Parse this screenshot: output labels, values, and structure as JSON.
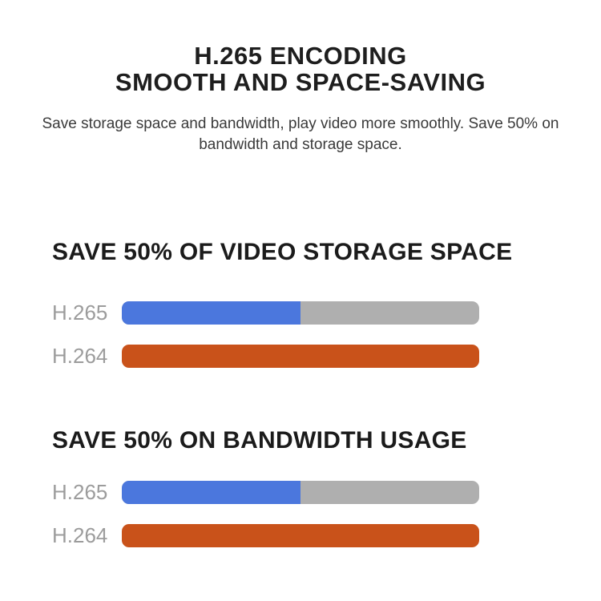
{
  "page": {
    "background_color": "#ffffff",
    "title_line1": "H.265 ENCODING",
    "title_line2": "SMOOTH AND SPACE-SAVING",
    "subtitle_line1": "Save storage space and bandwidth, play video more smoothly. Save 50% on",
    "subtitle_line2": "bandwidth and storage space."
  },
  "colors": {
    "title_text": "#1e1e1e",
    "subtitle_text": "#3a3a3a",
    "section_heading_text": "#1b1b1b",
    "bar_label_text": "#9c9c9c",
    "h265_fill": "#4b77dd",
    "h265_track": "#afafaf",
    "h264_fill": "#c9521a"
  },
  "sections": [
    {
      "heading": "SAVE 50% OF VIDEO STORAGE SPACE",
      "rows": [
        {
          "label": "H.265",
          "value_pct": 50,
          "fill_color": "#4b77dd",
          "track_color": "#afafaf"
        },
        {
          "label": "H.264",
          "value_pct": 100,
          "fill_color": "#c9521a",
          "track_color": "#c9521a"
        }
      ]
    },
    {
      "heading": "SAVE 50% ON BANDWIDTH USAGE",
      "rows": [
        {
          "label": "H.265",
          "value_pct": 50,
          "fill_color": "#4b77dd",
          "track_color": "#afafaf"
        },
        {
          "label": "H.264",
          "value_pct": 100,
          "fill_color": "#c9521a",
          "track_color": "#c9521a"
        }
      ]
    }
  ],
  "chart_data": [
    {
      "type": "bar",
      "orientation": "horizontal",
      "title": "SAVE 50% OF VIDEO STORAGE SPACE",
      "categories": [
        "H.265",
        "H.264"
      ],
      "values": [
        50,
        100
      ],
      "xlim": [
        0,
        100
      ],
      "unit": "%",
      "bar_colors": [
        "#4b77dd",
        "#c9521a"
      ],
      "track_color": "#afafaf",
      "grid": false,
      "legend": false
    },
    {
      "type": "bar",
      "orientation": "horizontal",
      "title": "SAVE 50% ON BANDWIDTH USAGE",
      "categories": [
        "H.265",
        "H.264"
      ],
      "values": [
        50,
        100
      ],
      "xlim": [
        0,
        100
      ],
      "unit": "%",
      "bar_colors": [
        "#4b77dd",
        "#c9521a"
      ],
      "track_color": "#afafaf",
      "grid": false,
      "legend": false
    }
  ]
}
